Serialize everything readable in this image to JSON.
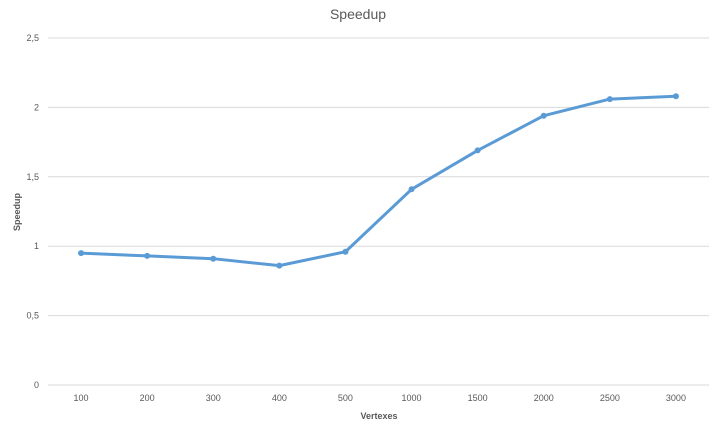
{
  "chart_data": {
    "type": "line",
    "title": "Speedup",
    "xlabel": "Vertexes",
    "ylabel": "Speedup",
    "categories": [
      "100",
      "200",
      "300",
      "400",
      "500",
      "1000",
      "1500",
      "2000",
      "2500",
      "3000"
    ],
    "series": [
      {
        "values": [
          0.95,
          0.93,
          0.91,
          0.86,
          0.96,
          1.41,
          1.69,
          1.94,
          2.06,
          2.08
        ]
      }
    ],
    "ylim": [
      0,
      2.5
    ],
    "yticks": [
      "0",
      "0,5",
      "1",
      "1,5",
      "2",
      "2,5"
    ],
    "grid": true,
    "legend": "none",
    "line_color": "#5b9bd5"
  }
}
